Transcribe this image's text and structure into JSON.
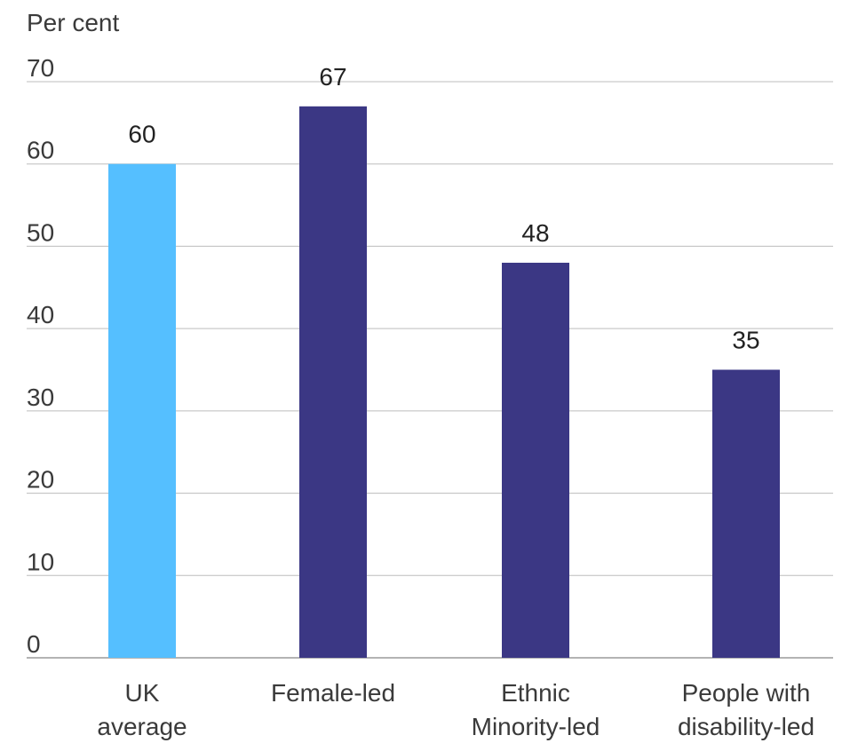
{
  "chart_data": {
    "type": "bar",
    "ylabel": "Per cent",
    "ylim": [
      0,
      70
    ],
    "yticks": [
      0,
      10,
      20,
      30,
      40,
      50,
      60,
      70
    ],
    "categories": [
      [
        "UK",
        "average"
      ],
      [
        "Female-led"
      ],
      [
        "Ethnic",
        "Minority-led"
      ],
      [
        "People with",
        "disability-led"
      ]
    ],
    "values": [
      60,
      67,
      48,
      35
    ],
    "data_labels": [
      "60",
      "67",
      "48",
      "35"
    ],
    "bar_colors": [
      "#55bfff",
      "#3b3784",
      "#3b3784",
      "#3b3784"
    ],
    "grid": true,
    "legend": "none"
  }
}
